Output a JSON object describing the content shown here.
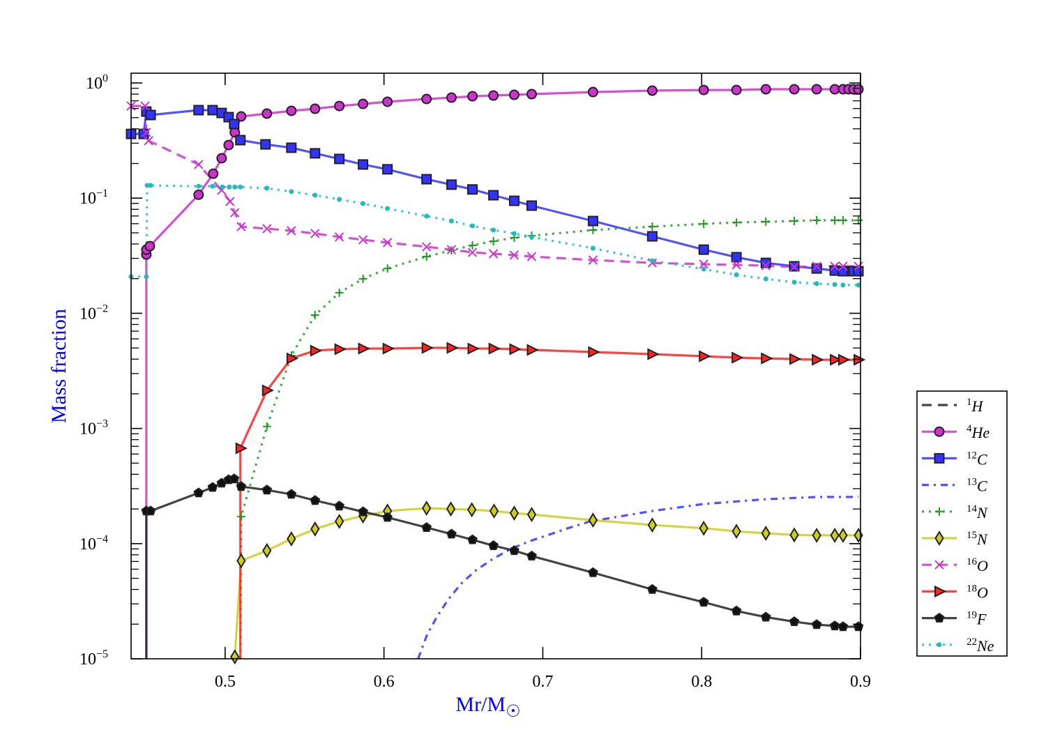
{
  "chart_data": {
    "type": "line",
    "title": "",
    "xlabel": "Mr/M",
    "xlabel_symbol": "☉",
    "ylabel": "Mass fraction",
    "xscale": "linear",
    "yscale": "log",
    "xlim": [
      0.4408,
      0.9
    ],
    "ylim": [
      1e-05,
      1.216
    ],
    "x_ticks": [
      0.5,
      0.6,
      0.7,
      0.8,
      0.9
    ],
    "x_tick_labels": [
      "0.5",
      "0.6",
      "0.7",
      "0.8",
      "0.9"
    ],
    "y_ticks": [
      1e-05,
      0.0001,
      0.001,
      0.01,
      0.1,
      1
    ],
    "y_tick_labels": [
      {
        "base": "10",
        "exp": "−5"
      },
      {
        "base": "10",
        "exp": "−4"
      },
      {
        "base": "10",
        "exp": "−3"
      },
      {
        "base": "10",
        "exp": "−2"
      },
      {
        "base": "10",
        "exp": "−1"
      },
      {
        "base": "10",
        "exp": "0"
      }
    ],
    "grid": false,
    "legend_position": "outside-right-bottom",
    "series": [
      {
        "name": "1H",
        "mass": "1",
        "symbol": "H",
        "color": "#222222",
        "linestyle": "dashed",
        "marker": "none",
        "points": []
      },
      {
        "name": "4He",
        "mass": "4",
        "symbol": "He",
        "color": "#cc33cc",
        "linestyle": "solid",
        "marker": "circle",
        "points": [
          [
            0.4504,
            1e-05
          ],
          [
            0.4504,
            0.0324
          ],
          [
            0.4504,
            0.0357
          ],
          [
            0.4526,
            0.0383
          ],
          [
            0.4833,
            0.107
          ],
          [
            0.4925,
            0.163
          ],
          [
            0.4978,
            0.222
          ],
          [
            0.5022,
            0.289
          ],
          [
            0.5061,
            0.372
          ],
          [
            0.5101,
            0.512
          ],
          [
            0.5263,
            0.542
          ],
          [
            0.5417,
            0.573
          ],
          [
            0.5566,
            0.597
          ],
          [
            0.5719,
            0.631
          ],
          [
            0.5868,
            0.658
          ],
          [
            0.6022,
            0.687
          ],
          [
            0.6268,
            0.726
          ],
          [
            0.6425,
            0.746
          ],
          [
            0.6557,
            0.767
          ],
          [
            0.6689,
            0.778
          ],
          [
            0.682,
            0.789
          ],
          [
            0.693,
            0.8
          ],
          [
            0.7316,
            0.834
          ],
          [
            0.7689,
            0.858
          ],
          [
            0.8013,
            0.869
          ],
          [
            0.8219,
            0.869
          ],
          [
            0.8404,
            0.882
          ],
          [
            0.8583,
            0.882
          ],
          [
            0.8724,
            0.882
          ],
          [
            0.8838,
            0.882
          ],
          [
            0.889,
            0.882
          ],
          [
            0.8925,
            0.882
          ],
          [
            0.8956,
            0.882
          ],
          [
            0.8987,
            0.882
          ]
        ]
      },
      {
        "name": "12C",
        "mass": "12",
        "symbol": "C",
        "color": "#3333ff",
        "linestyle": "solid",
        "marker": "square",
        "points": [
          [
            0.4408,
            0.361
          ],
          [
            0.4487,
            0.361
          ],
          [
            0.4504,
            0.565
          ],
          [
            0.4531,
            0.527
          ],
          [
            0.4833,
            0.581
          ],
          [
            0.4921,
            0.581
          ],
          [
            0.4978,
            0.549
          ],
          [
            0.5022,
            0.505
          ],
          [
            0.5057,
            0.44
          ],
          [
            0.5096,
            0.319
          ],
          [
            0.5254,
            0.293
          ],
          [
            0.5417,
            0.274
          ],
          [
            0.5566,
            0.245
          ],
          [
            0.5719,
            0.219
          ],
          [
            0.5868,
            0.196
          ],
          [
            0.6022,
            0.178
          ],
          [
            0.6268,
            0.146
          ],
          [
            0.6425,
            0.131
          ],
          [
            0.6557,
            0.119
          ],
          [
            0.6689,
            0.106
          ],
          [
            0.682,
            0.0948
          ],
          [
            0.693,
            0.0861
          ],
          [
            0.7316,
            0.0633
          ],
          [
            0.7689,
            0.0466
          ],
          [
            0.8013,
            0.0357
          ],
          [
            0.8219,
            0.0307
          ],
          [
            0.8404,
            0.0274
          ],
          [
            0.8583,
            0.0256
          ],
          [
            0.8724,
            0.0245
          ],
          [
            0.8838,
            0.0235
          ],
          [
            0.889,
            0.0232
          ],
          [
            0.8956,
            0.0232
          ],
          [
            0.8987,
            0.0232
          ]
        ]
      },
      {
        "name": "13C",
        "mass": "13",
        "symbol": "C",
        "color": "#3333ff",
        "linestyle": "dashdot",
        "marker": "none",
        "points": [
          [
            0.6215,
            1e-05
          ],
          [
            0.6272,
            1.63e-05
          ],
          [
            0.6338,
            2.37e-05
          ],
          [
            0.6404,
            3.27e-05
          ],
          [
            0.6487,
            4.51e-05
          ],
          [
            0.6579,
            5.87e-05
          ],
          [
            0.6684,
            7.34e-05
          ],
          [
            0.6798,
            9e-05
          ],
          [
            0.6917,
            0.000105
          ],
          [
            0.7035,
            0.000119
          ],
          [
            0.7158,
            0.000136
          ],
          [
            0.7298,
            0.000156
          ],
          [
            0.7689,
            0.000192
          ],
          [
            0.8013,
            0.000221
          ],
          [
            0.8404,
            0.000243
          ],
          [
            0.8724,
            0.000254
          ],
          [
            0.8987,
            0.000254
          ]
        ]
      },
      {
        "name": "14N",
        "mass": "14",
        "symbol": "N",
        "color": "#229922",
        "linestyle": "dotted",
        "marker": "plus",
        "points": [
          [
            0.5096,
            1e-05
          ],
          [
            0.5101,
            0.000172
          ],
          [
            0.5263,
            0.00104
          ],
          [
            0.5417,
            0.0043
          ],
          [
            0.5566,
            0.00964
          ],
          [
            0.5719,
            0.0151
          ],
          [
            0.5868,
            0.0199
          ],
          [
            0.6022,
            0.0245
          ],
          [
            0.6268,
            0.0311
          ],
          [
            0.6425,
            0.0352
          ],
          [
            0.6557,
            0.0389
          ],
          [
            0.6689,
            0.0423
          ],
          [
            0.682,
            0.0453
          ],
          [
            0.693,
            0.0472
          ],
          [
            0.7316,
            0.0528
          ],
          [
            0.7689,
            0.0566
          ],
          [
            0.8013,
            0.0598
          ],
          [
            0.8219,
            0.0615
          ],
          [
            0.8404,
            0.0624
          ],
          [
            0.8583,
            0.0633
          ],
          [
            0.8724,
            0.0642
          ],
          [
            0.8838,
            0.0642
          ],
          [
            0.889,
            0.0642
          ],
          [
            0.8987,
            0.0642
          ]
        ]
      },
      {
        "name": "15N",
        "mass": "15",
        "symbol": "N",
        "color": "#cccc22",
        "linestyle": "solid",
        "marker": "diamond",
        "points": [
          [
            0.5061,
            1.04e-05
          ],
          [
            0.5101,
            7.1e-05
          ],
          [
            0.5263,
            8.7e-05
          ],
          [
            0.5417,
            0.00011
          ],
          [
            0.5566,
            0.000134
          ],
          [
            0.5719,
            0.000156
          ],
          [
            0.5868,
            0.000174
          ],
          [
            0.6022,
            0.000192
          ],
          [
            0.6268,
            0.000203
          ],
          [
            0.6421,
            0.0002
          ],
          [
            0.6553,
            0.000197
          ],
          [
            0.6693,
            0.000192
          ],
          [
            0.682,
            0.000184
          ],
          [
            0.693,
            0.000179
          ],
          [
            0.7316,
            0.00016
          ],
          [
            0.7689,
            0.000145
          ],
          [
            0.8013,
            0.000136
          ],
          [
            0.8219,
            0.000128
          ],
          [
            0.8404,
            0.000123
          ],
          [
            0.8583,
            0.000119
          ],
          [
            0.8724,
            0.000118
          ],
          [
            0.8838,
            0.000118
          ],
          [
            0.889,
            0.000118
          ],
          [
            0.8987,
            0.000118
          ]
        ]
      },
      {
        "name": "16O",
        "mass": "16",
        "symbol": "O",
        "color": "#cc33cc",
        "linestyle": "dashed",
        "marker": "x",
        "points": [
          [
            0.4408,
            0.631
          ],
          [
            0.4496,
            0.631
          ],
          [
            0.4504,
            0.372
          ],
          [
            0.4518,
            0.315
          ],
          [
            0.4833,
            0.196
          ],
          [
            0.4978,
            0.117
          ],
          [
            0.5031,
            0.0935
          ],
          [
            0.5061,
            0.0748
          ],
          [
            0.5101,
            0.0566
          ],
          [
            0.5263,
            0.0543
          ],
          [
            0.5417,
            0.0521
          ],
          [
            0.5566,
            0.0493
          ],
          [
            0.5719,
            0.046
          ],
          [
            0.5868,
            0.0435
          ],
          [
            0.6022,
            0.0411
          ],
          [
            0.6268,
            0.0378
          ],
          [
            0.6425,
            0.0357
          ],
          [
            0.6557,
            0.0338
          ],
          [
            0.6689,
            0.0329
          ],
          [
            0.682,
            0.032
          ],
          [
            0.693,
            0.0311
          ],
          [
            0.7316,
            0.029
          ],
          [
            0.7689,
            0.0274
          ],
          [
            0.8013,
            0.0267
          ],
          [
            0.8219,
            0.0263
          ],
          [
            0.8404,
            0.0259
          ],
          [
            0.8583,
            0.0252
          ],
          [
            0.8724,
            0.0256
          ],
          [
            0.8838,
            0.0256
          ],
          [
            0.889,
            0.0256
          ],
          [
            0.8987,
            0.0256
          ]
        ]
      },
      {
        "name": "18O",
        "mass": "18",
        "symbol": "O",
        "color": "#ff2222",
        "linestyle": "solid",
        "marker": "triangle-right",
        "points": [
          [
            0.5096,
            1e-05
          ],
          [
            0.5096,
            0.000673
          ],
          [
            0.5263,
            0.00214
          ],
          [
            0.5417,
            0.00406
          ],
          [
            0.5566,
            0.00474
          ],
          [
            0.5719,
            0.00488
          ],
          [
            0.5868,
            0.00494
          ],
          [
            0.6022,
            0.00494
          ],
          [
            0.6268,
            0.00501
          ],
          [
            0.6425,
            0.00501
          ],
          [
            0.6557,
            0.00494
          ],
          [
            0.6689,
            0.00494
          ],
          [
            0.682,
            0.00488
          ],
          [
            0.693,
            0.00481
          ],
          [
            0.7316,
            0.00461
          ],
          [
            0.7689,
            0.00442
          ],
          [
            0.8013,
            0.00424
          ],
          [
            0.8219,
            0.00412
          ],
          [
            0.8404,
            0.00406
          ],
          [
            0.8583,
            0.00401
          ],
          [
            0.8724,
            0.00395
          ],
          [
            0.8838,
            0.00395
          ],
          [
            0.889,
            0.00395
          ],
          [
            0.8987,
            0.00395
          ]
        ]
      },
      {
        "name": "19F",
        "mass": "19",
        "symbol": "F",
        "color": "#222222",
        "linestyle": "solid",
        "marker": "pentagon",
        "points": [
          [
            0.4504,
            1e-05
          ],
          [
            0.4504,
            0.000192
          ],
          [
            0.4531,
            0.000192
          ],
          [
            0.4833,
            0.000276
          ],
          [
            0.4921,
            0.000308
          ],
          [
            0.4978,
            0.000335
          ],
          [
            0.5022,
            0.000359
          ],
          [
            0.5057,
            0.000365
          ],
          [
            0.5101,
            0.000313
          ],
          [
            0.5263,
            0.000292
          ],
          [
            0.5417,
            0.000268
          ],
          [
            0.5566,
            0.000237
          ],
          [
            0.5719,
            0.000212
          ],
          [
            0.5868,
            0.000189
          ],
          [
            0.6022,
            0.000169
          ],
          [
            0.6268,
            0.000138
          ],
          [
            0.6425,
            0.000121
          ],
          [
            0.6557,
            0.000108
          ],
          [
            0.6689,
            9.6e-05
          ],
          [
            0.682,
            8.7e-05
          ],
          [
            0.693,
            7.8e-05
          ],
          [
            0.7316,
            5.6e-05
          ],
          [
            0.7689,
            4e-05
          ],
          [
            0.8013,
            3.1e-05
          ],
          [
            0.8219,
            2.6e-05
          ],
          [
            0.8404,
            2.3e-05
          ],
          [
            0.8583,
            2.1e-05
          ],
          [
            0.8724,
            1.98e-05
          ],
          [
            0.8838,
            1.93e-05
          ],
          [
            0.889,
            1.9e-05
          ],
          [
            0.8987,
            1.9e-05
          ]
        ]
      },
      {
        "name": "22Ne",
        "mass": "22",
        "symbol": "Ne",
        "color": "#22bbbb",
        "linestyle": "dotted",
        "marker": "dot",
        "points": [
          [
            0.4408,
            0.0208
          ],
          [
            0.4504,
            0.0208
          ],
          [
            0.4509,
            0.129
          ],
          [
            0.4531,
            0.129
          ],
          [
            0.4833,
            0.127
          ],
          [
            0.4921,
            0.127
          ],
          [
            0.4982,
            0.125
          ],
          [
            0.5026,
            0.125
          ],
          [
            0.5061,
            0.125
          ],
          [
            0.5096,
            0.125
          ],
          [
            0.5263,
            0.122
          ],
          [
            0.5417,
            0.114
          ],
          [
            0.5566,
            0.106
          ],
          [
            0.5719,
            0.0975
          ],
          [
            0.5868,
            0.0897
          ],
          [
            0.6022,
            0.0813
          ],
          [
            0.6268,
            0.0698
          ],
          [
            0.6425,
            0.0633
          ],
          [
            0.6557,
            0.0574
          ],
          [
            0.6689,
            0.0528
          ],
          [
            0.682,
            0.0493
          ],
          [
            0.693,
            0.046
          ],
          [
            0.7316,
            0.0367
          ],
          [
            0.7689,
            0.0286
          ],
          [
            0.8013,
            0.0242
          ],
          [
            0.8219,
            0.0216
          ],
          [
            0.8404,
            0.0199
          ],
          [
            0.8583,
            0.0186
          ],
          [
            0.8724,
            0.0181
          ],
          [
            0.8838,
            0.0178
          ],
          [
            0.889,
            0.0176
          ],
          [
            0.8987,
            0.0176
          ]
        ]
      }
    ]
  }
}
